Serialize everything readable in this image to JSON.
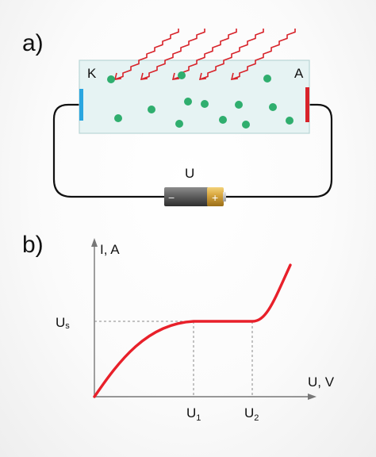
{
  "panel_a": {
    "label": "a)",
    "cathode_label": "K",
    "anode_label": "A",
    "source_label": "U",
    "battery_minus": "−",
    "battery_plus": "+",
    "cathode_color": "#2aa6e0",
    "anode_color": "#d8232a",
    "light_color": "#d8232a",
    "electron_color": "#2fae6e",
    "tube_fill": "#e6f3f3",
    "wire_color": "#111111"
  },
  "panel_b": {
    "label": "b)",
    "curve_color": "#e8202a",
    "chart_data": {
      "type": "line",
      "ylabel": "I, A",
      "xlabel": "U, V",
      "saturation_label_base": "U",
      "saturation_label_sub": "s",
      "x_ticks": [
        {
          "base": "U",
          "sub": "1"
        },
        {
          "base": "U",
          "sub": "2"
        }
      ],
      "grid": false,
      "dashed_guides": true
    }
  }
}
